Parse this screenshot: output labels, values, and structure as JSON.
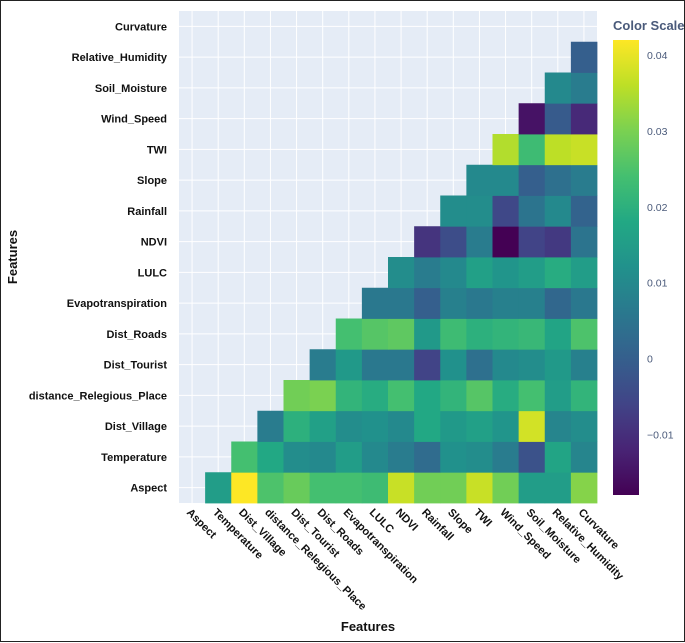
{
  "chart_data": {
    "type": "heatmap",
    "xlabel": "Features",
    "ylabel": "Features",
    "colorbar": {
      "title": "Color Scale",
      "range": [
        -0.018,
        0.042
      ],
      "ticks": [
        {
          "value": 0.04,
          "label": "0.04"
        },
        {
          "value": 0.03,
          "label": "0.03"
        },
        {
          "value": 0.02,
          "label": "0.02"
        },
        {
          "value": 0.01,
          "label": "0.01"
        },
        {
          "value": 0,
          "label": "0"
        },
        {
          "value": -0.01,
          "label": "−0.01"
        }
      ],
      "colormap": "viridis"
    },
    "features": [
      "Aspect",
      "Temperature",
      "Dist_Village",
      "distance_Relegious_Place",
      "Dist_Tourist",
      "Dist_Roads",
      "Evapotranspiration",
      "LULC",
      "NDVI",
      "Rainfall",
      "Slope",
      "TWI",
      "Wind_Speed",
      "Soil_Moisture",
      "Relative_Humidity",
      "Curvature"
    ],
    "values": [
      [
        null,
        0.015,
        0.042,
        0.025,
        0.028,
        0.024,
        0.024,
        0.023,
        0.037,
        0.029,
        0.029,
        0.037,
        0.029,
        0.015,
        0.015,
        0.031
      ],
      [
        null,
        null,
        0.024,
        0.018,
        0.011,
        0.01,
        0.015,
        0.01,
        0.007,
        0.003,
        0.012,
        0.011,
        0.007,
        -0.003,
        0.017,
        0.009
      ],
      [
        null,
        null,
        null,
        0.007,
        0.02,
        0.016,
        0.011,
        0.012,
        0.01,
        0.018,
        0.014,
        0.016,
        0.013,
        0.038,
        0.009,
        0.011
      ],
      [
        null,
        null,
        null,
        null,
        0.029,
        0.03,
        0.021,
        0.019,
        0.024,
        0.018,
        0.021,
        0.026,
        0.019,
        0.024,
        0.015,
        0.021
      ],
      [
        null,
        null,
        null,
        null,
        null,
        0.007,
        0.014,
        0.006,
        0.006,
        -0.006,
        0.012,
        0.004,
        0.01,
        0.011,
        0.014,
        0.008
      ],
      [
        null,
        null,
        null,
        null,
        null,
        null,
        0.024,
        0.026,
        0.027,
        0.014,
        0.023,
        0.02,
        0.021,
        0.022,
        0.017,
        0.025
      ],
      [
        null,
        null,
        null,
        null,
        null,
        null,
        null,
        0.006,
        0.006,
        0.0,
        0.008,
        0.006,
        0.008,
        0.008,
        0.002,
        0.006
      ],
      [
        null,
        null,
        null,
        null,
        null,
        null,
        null,
        null,
        0.011,
        0.007,
        0.01,
        0.016,
        0.013,
        0.015,
        0.019,
        0.015
      ],
      [
        null,
        null,
        null,
        null,
        null,
        null,
        null,
        null,
        null,
        -0.009,
        -0.004,
        0.007,
        -0.018,
        -0.006,
        -0.008,
        0.005
      ],
      [
        null,
        null,
        null,
        null,
        null,
        null,
        null,
        null,
        null,
        null,
        0.011,
        0.011,
        -0.005,
        0.005,
        0.01,
        0.001
      ],
      [
        null,
        null,
        null,
        null,
        null,
        null,
        null,
        null,
        null,
        null,
        null,
        0.01,
        0.01,
        0.0,
        0.004,
        0.007
      ],
      [
        null,
        null,
        null,
        null,
        null,
        null,
        null,
        null,
        null,
        null,
        null,
        null,
        0.035,
        0.023,
        0.036,
        0.037
      ],
      [
        null,
        null,
        null,
        null,
        null,
        null,
        null,
        null,
        null,
        null,
        null,
        null,
        null,
        -0.015,
        -0.001,
        -0.011
      ],
      [
        null,
        null,
        null,
        null,
        null,
        null,
        null,
        null,
        null,
        null,
        null,
        null,
        null,
        null,
        0.01,
        0.007
      ],
      [
        null,
        null,
        null,
        null,
        null,
        null,
        null,
        null,
        null,
        null,
        null,
        null,
        null,
        null,
        null,
        0.0
      ],
      [
        null,
        null,
        null,
        null,
        null,
        null,
        null,
        null,
        null,
        null,
        null,
        null,
        null,
        null,
        null,
        null
      ]
    ]
  }
}
